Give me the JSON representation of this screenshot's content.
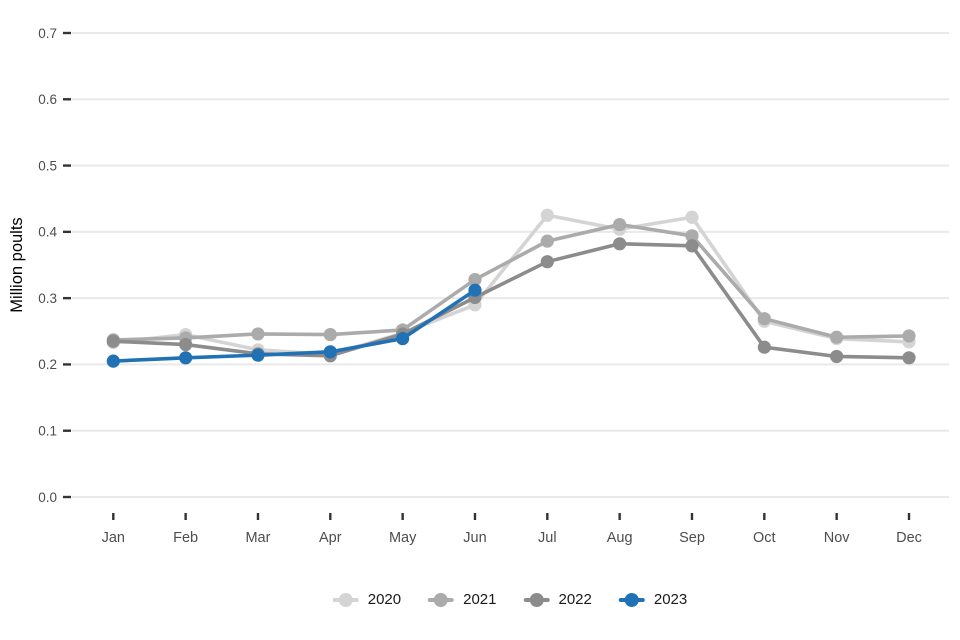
{
  "chart_data": {
    "type": "line",
    "title": "",
    "xlabel": "",
    "ylabel": "Million poults",
    "categories": [
      "Jan",
      "Feb",
      "Mar",
      "Apr",
      "May",
      "Jun",
      "Jul",
      "Aug",
      "Sep",
      "Oct",
      "Nov",
      "Dec"
    ],
    "y_ticks": [
      0.0,
      0.1,
      0.2,
      0.3,
      0.4,
      0.5,
      0.6,
      0.7
    ],
    "ylim": [
      0.0,
      0.7
    ],
    "grid": "horizontal-major-only",
    "legend_position": "bottom-center",
    "series": [
      {
        "name": "2020",
        "color": "#d4d4d4",
        "values": [
          0.233,
          0.245,
          0.222,
          0.215,
          0.247,
          0.29,
          0.425,
          0.404,
          0.422,
          0.265,
          0.239,
          0.234
        ]
      },
      {
        "name": "2021",
        "color": "#ababab",
        "values": [
          0.237,
          0.24,
          0.246,
          0.245,
          0.252,
          0.328,
          0.386,
          0.411,
          0.394,
          0.269,
          0.241,
          0.243
        ]
      },
      {
        "name": "2022",
        "color": "#8c8c8c",
        "values": [
          0.235,
          0.23,
          0.216,
          0.213,
          0.246,
          0.301,
          0.355,
          0.382,
          0.379,
          0.226,
          0.212,
          0.21
        ]
      },
      {
        "name": "2023",
        "color": "#2171b5",
        "values": [
          0.205,
          0.21,
          0.214,
          0.219,
          0.239,
          0.312,
          null,
          null,
          null,
          null,
          null,
          null
        ]
      }
    ]
  },
  "style_colors": {
    "gridline": "#e9e9e9",
    "tick_mark": "#333333",
    "tick_label": "#4d4d4d",
    "axis_title": "#000000",
    "legend_text": "#1a1a1a",
    "background": "#ffffff"
  }
}
